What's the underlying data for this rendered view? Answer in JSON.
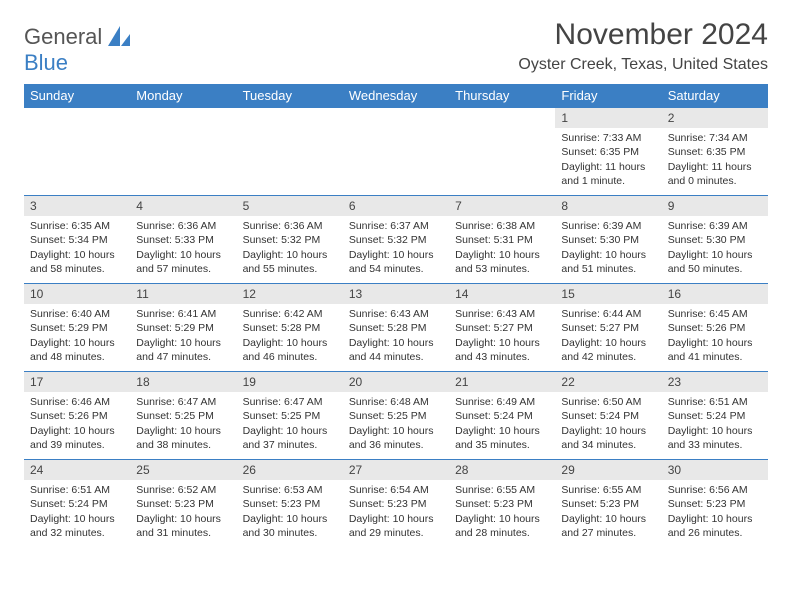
{
  "logo": {
    "general": "General",
    "blue": "Blue"
  },
  "header": {
    "month_title": "November 2024",
    "location": "Oyster Creek, Texas, United States"
  },
  "colors": {
    "brand_blue": "#3b7fc4",
    "header_bg": "#3b7fc4",
    "header_text": "#ffffff",
    "daynum_bg": "#e8e8e8",
    "cell_border": "#3b7fc4",
    "body_text": "#333333"
  },
  "weekdays": [
    "Sunday",
    "Monday",
    "Tuesday",
    "Wednesday",
    "Thursday",
    "Friday",
    "Saturday"
  ],
  "weeks": [
    [
      {
        "empty": true
      },
      {
        "empty": true
      },
      {
        "empty": true
      },
      {
        "empty": true
      },
      {
        "empty": true
      },
      {
        "day": "1",
        "sunrise": "Sunrise: 7:33 AM",
        "sunset": "Sunset: 6:35 PM",
        "dl1": "Daylight: 11 hours",
        "dl2": "and 1 minute."
      },
      {
        "day": "2",
        "sunrise": "Sunrise: 7:34 AM",
        "sunset": "Sunset: 6:35 PM",
        "dl1": "Daylight: 11 hours",
        "dl2": "and 0 minutes."
      }
    ],
    [
      {
        "day": "3",
        "sunrise": "Sunrise: 6:35 AM",
        "sunset": "Sunset: 5:34 PM",
        "dl1": "Daylight: 10 hours",
        "dl2": "and 58 minutes."
      },
      {
        "day": "4",
        "sunrise": "Sunrise: 6:36 AM",
        "sunset": "Sunset: 5:33 PM",
        "dl1": "Daylight: 10 hours",
        "dl2": "and 57 minutes."
      },
      {
        "day": "5",
        "sunrise": "Sunrise: 6:36 AM",
        "sunset": "Sunset: 5:32 PM",
        "dl1": "Daylight: 10 hours",
        "dl2": "and 55 minutes."
      },
      {
        "day": "6",
        "sunrise": "Sunrise: 6:37 AM",
        "sunset": "Sunset: 5:32 PM",
        "dl1": "Daylight: 10 hours",
        "dl2": "and 54 minutes."
      },
      {
        "day": "7",
        "sunrise": "Sunrise: 6:38 AM",
        "sunset": "Sunset: 5:31 PM",
        "dl1": "Daylight: 10 hours",
        "dl2": "and 53 minutes."
      },
      {
        "day": "8",
        "sunrise": "Sunrise: 6:39 AM",
        "sunset": "Sunset: 5:30 PM",
        "dl1": "Daylight: 10 hours",
        "dl2": "and 51 minutes."
      },
      {
        "day": "9",
        "sunrise": "Sunrise: 6:39 AM",
        "sunset": "Sunset: 5:30 PM",
        "dl1": "Daylight: 10 hours",
        "dl2": "and 50 minutes."
      }
    ],
    [
      {
        "day": "10",
        "sunrise": "Sunrise: 6:40 AM",
        "sunset": "Sunset: 5:29 PM",
        "dl1": "Daylight: 10 hours",
        "dl2": "and 48 minutes."
      },
      {
        "day": "11",
        "sunrise": "Sunrise: 6:41 AM",
        "sunset": "Sunset: 5:29 PM",
        "dl1": "Daylight: 10 hours",
        "dl2": "and 47 minutes."
      },
      {
        "day": "12",
        "sunrise": "Sunrise: 6:42 AM",
        "sunset": "Sunset: 5:28 PM",
        "dl1": "Daylight: 10 hours",
        "dl2": "and 46 minutes."
      },
      {
        "day": "13",
        "sunrise": "Sunrise: 6:43 AM",
        "sunset": "Sunset: 5:28 PM",
        "dl1": "Daylight: 10 hours",
        "dl2": "and 44 minutes."
      },
      {
        "day": "14",
        "sunrise": "Sunrise: 6:43 AM",
        "sunset": "Sunset: 5:27 PM",
        "dl1": "Daylight: 10 hours",
        "dl2": "and 43 minutes."
      },
      {
        "day": "15",
        "sunrise": "Sunrise: 6:44 AM",
        "sunset": "Sunset: 5:27 PM",
        "dl1": "Daylight: 10 hours",
        "dl2": "and 42 minutes."
      },
      {
        "day": "16",
        "sunrise": "Sunrise: 6:45 AM",
        "sunset": "Sunset: 5:26 PM",
        "dl1": "Daylight: 10 hours",
        "dl2": "and 41 minutes."
      }
    ],
    [
      {
        "day": "17",
        "sunrise": "Sunrise: 6:46 AM",
        "sunset": "Sunset: 5:26 PM",
        "dl1": "Daylight: 10 hours",
        "dl2": "and 39 minutes."
      },
      {
        "day": "18",
        "sunrise": "Sunrise: 6:47 AM",
        "sunset": "Sunset: 5:25 PM",
        "dl1": "Daylight: 10 hours",
        "dl2": "and 38 minutes."
      },
      {
        "day": "19",
        "sunrise": "Sunrise: 6:47 AM",
        "sunset": "Sunset: 5:25 PM",
        "dl1": "Daylight: 10 hours",
        "dl2": "and 37 minutes."
      },
      {
        "day": "20",
        "sunrise": "Sunrise: 6:48 AM",
        "sunset": "Sunset: 5:25 PM",
        "dl1": "Daylight: 10 hours",
        "dl2": "and 36 minutes."
      },
      {
        "day": "21",
        "sunrise": "Sunrise: 6:49 AM",
        "sunset": "Sunset: 5:24 PM",
        "dl1": "Daylight: 10 hours",
        "dl2": "and 35 minutes."
      },
      {
        "day": "22",
        "sunrise": "Sunrise: 6:50 AM",
        "sunset": "Sunset: 5:24 PM",
        "dl1": "Daylight: 10 hours",
        "dl2": "and 34 minutes."
      },
      {
        "day": "23",
        "sunrise": "Sunrise: 6:51 AM",
        "sunset": "Sunset: 5:24 PM",
        "dl1": "Daylight: 10 hours",
        "dl2": "and 33 minutes."
      }
    ],
    [
      {
        "day": "24",
        "sunrise": "Sunrise: 6:51 AM",
        "sunset": "Sunset: 5:24 PM",
        "dl1": "Daylight: 10 hours",
        "dl2": "and 32 minutes."
      },
      {
        "day": "25",
        "sunrise": "Sunrise: 6:52 AM",
        "sunset": "Sunset: 5:23 PM",
        "dl1": "Daylight: 10 hours",
        "dl2": "and 31 minutes."
      },
      {
        "day": "26",
        "sunrise": "Sunrise: 6:53 AM",
        "sunset": "Sunset: 5:23 PM",
        "dl1": "Daylight: 10 hours",
        "dl2": "and 30 minutes."
      },
      {
        "day": "27",
        "sunrise": "Sunrise: 6:54 AM",
        "sunset": "Sunset: 5:23 PM",
        "dl1": "Daylight: 10 hours",
        "dl2": "and 29 minutes."
      },
      {
        "day": "28",
        "sunrise": "Sunrise: 6:55 AM",
        "sunset": "Sunset: 5:23 PM",
        "dl1": "Daylight: 10 hours",
        "dl2": "and 28 minutes."
      },
      {
        "day": "29",
        "sunrise": "Sunrise: 6:55 AM",
        "sunset": "Sunset: 5:23 PM",
        "dl1": "Daylight: 10 hours",
        "dl2": "and 27 minutes."
      },
      {
        "day": "30",
        "sunrise": "Sunrise: 6:56 AM",
        "sunset": "Sunset: 5:23 PM",
        "dl1": "Daylight: 10 hours",
        "dl2": "and 26 minutes."
      }
    ]
  ]
}
